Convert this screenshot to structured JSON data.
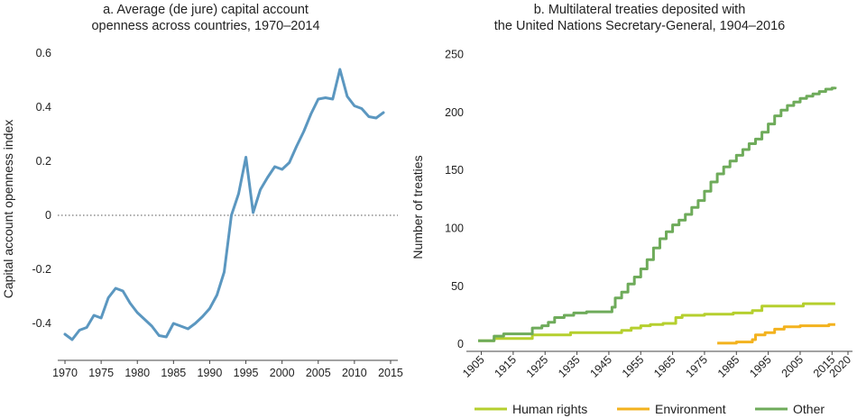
{
  "colors": {
    "capital": "#5b97c0",
    "human_rights": "#b5cf2e",
    "environment": "#f3b21e",
    "other": "#6eab5a"
  },
  "chart_data": [
    {
      "type": "line",
      "title_lines": [
        "a. Average (de jure) capital account",
        "openness across countries, 1970–2014"
      ],
      "xlabel": "",
      "ylabel": "Capital account openness index",
      "xlim": [
        1969,
        2016
      ],
      "ylim": [
        -0.47,
        0.63
      ],
      "xticks": [
        1970,
        1975,
        1980,
        1985,
        1990,
        1995,
        2000,
        2005,
        2010,
        2015
      ],
      "yticks": [
        -0.4,
        -0.2,
        0,
        0.2,
        0.4,
        0.6
      ],
      "ytick_labels": [
        "-0.4",
        "-0.2",
        "0",
        "0.2",
        "0.4",
        "0.6"
      ],
      "reference_line": {
        "y": 0,
        "style": "dotted"
      },
      "series": [
        {
          "x": [
            1970,
            1971,
            1972,
            1973,
            1974,
            1975,
            1976,
            1977,
            1978,
            1979,
            1980,
            1981,
            1982,
            1983,
            1984,
            1985,
            1986,
            1987,
            1988,
            1989,
            1990,
            1991,
            1992,
            1993,
            1994,
            1995,
            1996,
            1997,
            1998,
            1999,
            2000,
            2001,
            2002,
            2003,
            2004,
            2005,
            2006,
            2007,
            2008,
            2009,
            2010,
            2011,
            2012,
            2013,
            2014
          ],
          "y": [
            -0.44,
            -0.46,
            -0.425,
            -0.415,
            -0.37,
            -0.38,
            -0.305,
            -0.27,
            -0.28,
            -0.325,
            -0.36,
            -0.385,
            -0.41,
            -0.445,
            -0.45,
            -0.4,
            -0.41,
            -0.42,
            -0.4,
            -0.375,
            -0.345,
            -0.295,
            -0.21,
            0.0,
            0.08,
            0.215,
            0.01,
            0.095,
            0.14,
            0.18,
            0.17,
            0.195,
            0.255,
            0.31,
            0.375,
            0.43,
            0.435,
            0.43,
            0.54,
            0.44,
            0.405,
            0.395,
            0.365,
            0.36,
            0.38
          ]
        }
      ]
    },
    {
      "type": "line",
      "title_lines": [
        "b. Multilateral treaties deposited with",
        "the United Nations Secretary-General, 1904–2016"
      ],
      "xlabel": "",
      "ylabel": "Number of treaties",
      "xlim": [
        1900,
        2020
      ],
      "ylim": [
        -3,
        255
      ],
      "xticks": [
        1905,
        1915,
        1925,
        1935,
        1945,
        1955,
        1965,
        1975,
        1985,
        1995,
        2005,
        2015,
        2020
      ],
      "yticks": [
        0,
        50,
        100,
        150,
        200,
        250
      ],
      "legend_position": "bottom",
      "series": [
        {
          "name": "Human rights",
          "x": [
            1904,
            1908,
            1909,
            1920,
            1921,
            1932,
            1933,
            1946,
            1949,
            1952,
            1955,
            1958,
            1962,
            1966,
            1968,
            1975,
            1984,
            1990,
            1993,
            2006,
            2016
          ],
          "y": [
            3,
            3,
            5,
            5,
            8,
            8,
            10,
            10,
            12,
            14,
            16,
            17,
            18,
            23,
            25,
            26,
            27,
            29,
            33,
            35,
            35
          ]
        },
        {
          "name": "Environment",
          "x": [
            1979,
            1983,
            1985,
            1988,
            1990,
            1991,
            1994,
            1997,
            2000,
            2002,
            2005,
            2010,
            2014,
            2016
          ],
          "y": [
            1,
            1,
            2,
            2,
            4,
            8,
            10,
            13,
            15,
            15,
            16,
            16,
            17,
            17
          ]
        },
        {
          "name": "Other",
          "x": [
            1904,
            1908,
            1909,
            1912,
            1920,
            1921,
            1924,
            1926,
            1928,
            1931,
            1934,
            1938,
            1945,
            1946,
            1947,
            1949,
            1951,
            1953,
            1955,
            1957,
            1959,
            1961,
            1963,
            1965,
            1967,
            1969,
            1971,
            1973,
            1975,
            1977,
            1979,
            1981,
            1983,
            1985,
            1987,
            1989,
            1991,
            1993,
            1995,
            1997,
            1999,
            2001,
            2003,
            2005,
            2007,
            2009,
            2011,
            2013,
            2015,
            2016
          ],
          "y": [
            3,
            3,
            7,
            9,
            9,
            14,
            16,
            19,
            23,
            25,
            27,
            28,
            28,
            32,
            40,
            45,
            52,
            58,
            65,
            73,
            83,
            91,
            97,
            103,
            107,
            112,
            118,
            124,
            132,
            140,
            147,
            153,
            158,
            163,
            168,
            173,
            177,
            183,
            190,
            197,
            202,
            206,
            209,
            212,
            214,
            216,
            218,
            220,
            221,
            222
          ]
        }
      ]
    }
  ]
}
